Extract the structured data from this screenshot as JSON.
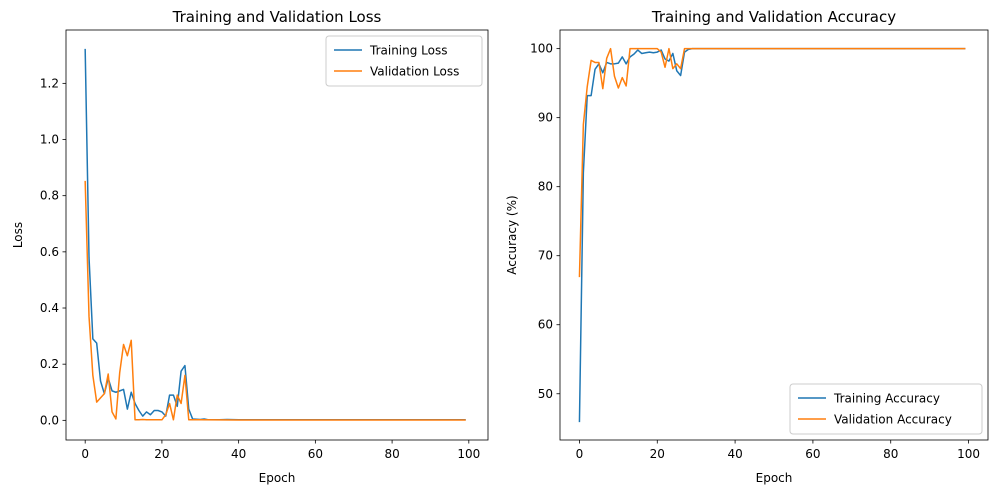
{
  "chart_data": [
    {
      "type": "line",
      "title": "Training and Validation Loss",
      "xlabel": "Epoch",
      "ylabel": "Loss",
      "xlim": [
        -5,
        105
      ],
      "ylim": [
        -0.07,
        1.39
      ],
      "x_ticks": [
        0,
        20,
        40,
        60,
        80,
        100
      ],
      "x_tick_labels": [
        "0",
        "20",
        "40",
        "60",
        "80",
        "100"
      ],
      "y_ticks": [
        0.0,
        0.2,
        0.4,
        0.6,
        0.8,
        1.0,
        1.2
      ],
      "y_tick_labels": [
        "0.0",
        "0.2",
        "0.4",
        "0.6",
        "0.8",
        "1.0",
        "1.2"
      ],
      "grid": false,
      "legend_position": "upper right",
      "series": [
        {
          "name": "Training Loss",
          "color": "#1f77b4",
          "points": [
            [
              0,
              1.32
            ],
            [
              1,
              0.58
            ],
            [
              2,
              0.29
            ],
            [
              3,
              0.275
            ],
            [
              4,
              0.14
            ],
            [
              5,
              0.095
            ],
            [
              6,
              0.15
            ],
            [
              7,
              0.105
            ],
            [
              8,
              0.1
            ],
            [
              9,
              0.105
            ],
            [
              10,
              0.11
            ],
            [
              11,
              0.04
            ],
            [
              12,
              0.1
            ],
            [
              13,
              0.06
            ],
            [
              14,
              0.035
            ],
            [
              15,
              0.015
            ],
            [
              16,
              0.03
            ],
            [
              17,
              0.02
            ],
            [
              18,
              0.035
            ],
            [
              19,
              0.035
            ],
            [
              20,
              0.03
            ],
            [
              21,
              0.015
            ],
            [
              22,
              0.09
            ],
            [
              23,
              0.09
            ],
            [
              24,
              0.05
            ],
            [
              25,
              0.175
            ],
            [
              26,
              0.195
            ],
            [
              27,
              0.04
            ],
            [
              28,
              0.005
            ],
            [
              29,
              0.004
            ],
            [
              30,
              0.003
            ],
            [
              31,
              0.005
            ],
            [
              32,
              0.002
            ],
            [
              33,
              0.002
            ],
            [
              35,
              0.002
            ],
            [
              37,
              0.003
            ],
            [
              40,
              0.002
            ],
            [
              50,
              0.002
            ],
            [
              60,
              0.002
            ],
            [
              70,
              0.002
            ],
            [
              80,
              0.002
            ],
            [
              90,
              0.002
            ],
            [
              99,
              0.002
            ]
          ]
        },
        {
          "name": "Validation Loss",
          "color": "#ff7f0e",
          "points": [
            [
              0,
              0.85
            ],
            [
              1,
              0.37
            ],
            [
              2,
              0.16
            ],
            [
              3,
              0.065
            ],
            [
              4,
              0.08
            ],
            [
              5,
              0.095
            ],
            [
              6,
              0.165
            ],
            [
              7,
              0.03
            ],
            [
              8,
              0.005
            ],
            [
              9,
              0.17
            ],
            [
              10,
              0.27
            ],
            [
              11,
              0.23
            ],
            [
              12,
              0.285
            ],
            [
              13,
              0.002
            ],
            [
              14,
              0.002
            ],
            [
              15,
              0.003
            ],
            [
              16,
              0.002
            ],
            [
              17,
              0.002
            ],
            [
              18,
              0.002
            ],
            [
              19,
              0.002
            ],
            [
              20,
              0.002
            ],
            [
              21,
              0.02
            ],
            [
              22,
              0.06
            ],
            [
              23,
              0.002
            ],
            [
              24,
              0.09
            ],
            [
              25,
              0.06
            ],
            [
              26,
              0.16
            ],
            [
              27,
              0.002
            ],
            [
              28,
              0.002
            ],
            [
              30,
              0.002
            ],
            [
              40,
              0.001
            ],
            [
              50,
              0.001
            ],
            [
              60,
              0.001
            ],
            [
              70,
              0.001
            ],
            [
              80,
              0.001
            ],
            [
              90,
              0.001
            ],
            [
              99,
              0.001
            ]
          ]
        }
      ]
    },
    {
      "type": "line",
      "title": "Training and Validation Accuracy",
      "xlabel": "Epoch",
      "ylabel": "Accuracy (%)",
      "xlim": [
        -5,
        105
      ],
      "ylim": [
        43.3,
        102.7
      ],
      "x_ticks": [
        0,
        20,
        40,
        60,
        80,
        100
      ],
      "x_tick_labels": [
        "0",
        "20",
        "40",
        "60",
        "80",
        "100"
      ],
      "y_ticks": [
        50,
        60,
        70,
        80,
        90,
        100
      ],
      "y_tick_labels": [
        "50",
        "60",
        "70",
        "80",
        "90",
        "100"
      ],
      "grid": false,
      "legend_position": "lower right",
      "series": [
        {
          "name": "Training Accuracy",
          "color": "#1f77b4",
          "points": [
            [
              0,
              46
            ],
            [
              1,
              82
            ],
            [
              2,
              93.2
            ],
            [
              3,
              93.2
            ],
            [
              4,
              97
            ],
            [
              5,
              97.8
            ],
            [
              6,
              96.5
            ],
            [
              7,
              98
            ],
            [
              8,
              97.8
            ],
            [
              9,
              97.8
            ],
            [
              10,
              97.9
            ],
            [
              11,
              98.8
            ],
            [
              12,
              97.8
            ],
            [
              13,
              98.8
            ],
            [
              14,
              99.2
            ],
            [
              15,
              99.8
            ],
            [
              16,
              99.3
            ],
            [
              17,
              99.4
            ],
            [
              18,
              99.5
            ],
            [
              19,
              99.4
            ],
            [
              20,
              99.5
            ],
            [
              21,
              99.8
            ],
            [
              22,
              98.5
            ],
            [
              23,
              98.2
            ],
            [
              24,
              99.3
            ],
            [
              25,
              96.8
            ],
            [
              26,
              96.1
            ],
            [
              27,
              99.5
            ],
            [
              28,
              99.9
            ],
            [
              29,
              100
            ],
            [
              30,
              100
            ],
            [
              40,
              100
            ],
            [
              50,
              100
            ],
            [
              60,
              100
            ],
            [
              70,
              100
            ],
            [
              80,
              100
            ],
            [
              90,
              100
            ],
            [
              99,
              100
            ]
          ]
        },
        {
          "name": "Validation Accuracy",
          "color": "#ff7f0e",
          "points": [
            [
              0,
              67
            ],
            [
              1,
              89
            ],
            [
              2,
              94.5
            ],
            [
              3,
              98.3
            ],
            [
              4,
              98
            ],
            [
              5,
              98
            ],
            [
              6,
              94.2
            ],
            [
              7,
              98.6
            ],
            [
              8,
              100
            ],
            [
              9,
              96
            ],
            [
              10,
              94.3
            ],
            [
              11,
              95.8
            ],
            [
              12,
              94.6
            ],
            [
              13,
              100
            ],
            [
              14,
              100
            ],
            [
              15,
              100
            ],
            [
              16,
              100
            ],
            [
              17,
              100
            ],
            [
              18,
              100
            ],
            [
              19,
              100
            ],
            [
              20,
              100
            ],
            [
              21,
              99.5
            ],
            [
              22,
              97.3
            ],
            [
              23,
              100
            ],
            [
              24,
              97.1
            ],
            [
              25,
              97.8
            ],
            [
              26,
              97.1
            ],
            [
              27,
              100
            ],
            [
              28,
              100
            ],
            [
              30,
              100
            ],
            [
              40,
              100
            ],
            [
              50,
              100
            ],
            [
              60,
              100
            ],
            [
              70,
              100
            ],
            [
              80,
              100
            ],
            [
              90,
              100
            ],
            [
              99,
              100
            ]
          ]
        }
      ]
    }
  ]
}
